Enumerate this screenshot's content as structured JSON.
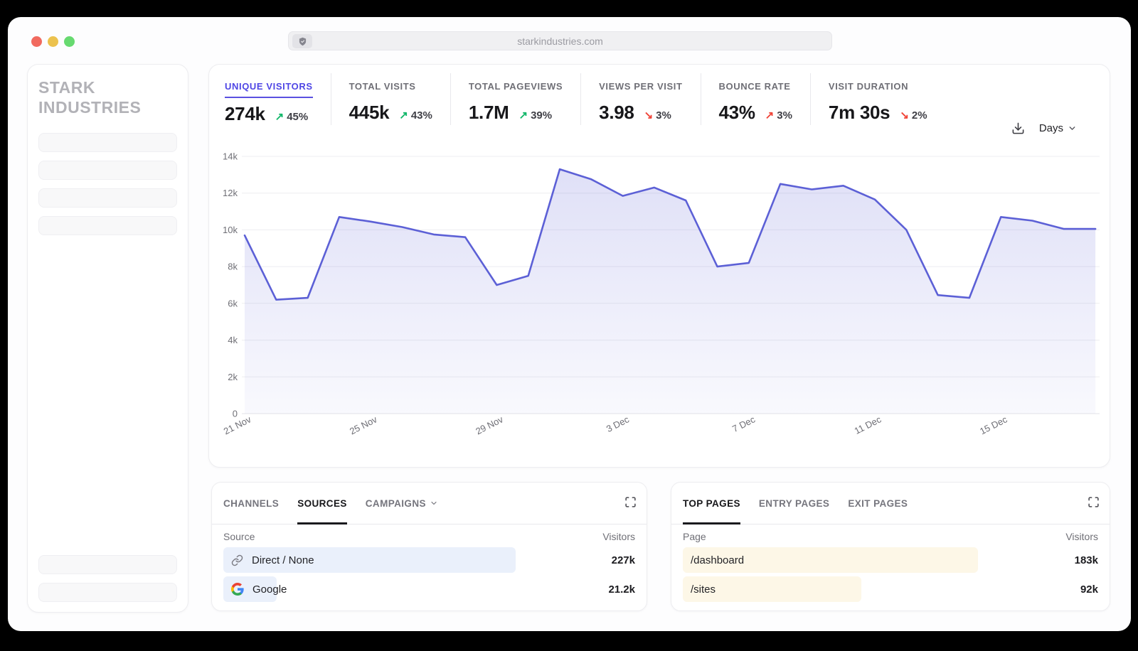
{
  "browser": {
    "url": "starkindustries.com"
  },
  "sidebar": {
    "brand_lines": [
      "STARK",
      "INDUSTRIES"
    ],
    "nav_placeholder_count": 4,
    "footer_placeholder_count": 2
  },
  "metrics": [
    {
      "label": "UNIQUE VISITORS",
      "value": "274k",
      "change": "45%",
      "direction": "up",
      "trend": "positive",
      "active": true
    },
    {
      "label": "TOTAL VISITS",
      "value": "445k",
      "change": "43%",
      "direction": "up",
      "trend": "positive",
      "active": false
    },
    {
      "label": "TOTAL PAGEVIEWS",
      "value": "1.7M",
      "change": "39%",
      "direction": "up",
      "trend": "positive",
      "active": false
    },
    {
      "label": "VIEWS PER VISIT",
      "value": "3.98",
      "change": "3%",
      "direction": "down",
      "trend": "negative",
      "active": false
    },
    {
      "label": "BOUNCE RATE",
      "value": "43%",
      "change": "3%",
      "direction": "up",
      "trend": "negative",
      "active": false
    },
    {
      "label": "VISIT DURATION",
      "value": "7m 30s",
      "change": "2%",
      "direction": "down",
      "trend": "negative",
      "active": false
    }
  ],
  "toolbar": {
    "interval_label": "Days"
  },
  "chart_data": {
    "type": "area",
    "title": "Unique visitors per day",
    "x": [
      "21 Nov",
      "22 Nov",
      "23 Nov",
      "24 Nov",
      "25 Nov",
      "26 Nov",
      "27 Nov",
      "28 Nov",
      "29 Nov",
      "30 Nov",
      "1 Dec",
      "2 Dec",
      "3 Dec",
      "4 Dec",
      "5 Dec",
      "6 Dec",
      "7 Dec",
      "8 Dec",
      "9 Dec",
      "10 Dec",
      "11 Dec",
      "12 Dec",
      "13 Dec",
      "14 Dec",
      "15 Dec",
      "16 Dec",
      "17 Dec",
      "18 Dec"
    ],
    "values_thousands": [
      9.7,
      6.2,
      6.3,
      10.7,
      10.45,
      10.15,
      9.75,
      9.6,
      7.0,
      7.5,
      13.3,
      12.75,
      11.85,
      12.3,
      11.6,
      8.0,
      8.2,
      12.5,
      12.2,
      12.4,
      11.65,
      10.0,
      6.45,
      6.3,
      10.7,
      10.5,
      10.05,
      10.05
    ],
    "xtick_indices": [
      0,
      4,
      8,
      12,
      16,
      20,
      24
    ],
    "xtick_labels": [
      "21 Nov",
      "25 Nov",
      "29 Nov",
      "3 Dec",
      "7 Dec",
      "11 Dec",
      "15 Dec"
    ],
    "ytick_labels": [
      "0",
      "2k",
      "4k",
      "6k",
      "8k",
      "10k",
      "12k",
      "14k"
    ],
    "ylim_thousands": [
      0,
      14
    ],
    "grid": true,
    "legend": "none",
    "line_color": "#5c60d6",
    "fill_top": "rgba(97,100,215,0.20)",
    "fill_bottom": "rgba(97,100,215,0.04)"
  },
  "sources_card": {
    "tabs": [
      {
        "label": "CHANNELS",
        "active": false,
        "has_chevron": false
      },
      {
        "label": "SOURCES",
        "active": true,
        "has_chevron": false
      },
      {
        "label": "CAMPAIGNS",
        "active": false,
        "has_chevron": true
      }
    ],
    "columns": {
      "left": "Source",
      "right": "Visitors"
    },
    "rows": [
      {
        "icon": "link-icon",
        "label": "Direct / None",
        "value": "227k",
        "bar_pct": 71
      },
      {
        "icon": "google-icon",
        "label": "Google",
        "value": "21.2k",
        "bar_pct": 13
      }
    ],
    "bar_color": "#eaf0fb"
  },
  "pages_card": {
    "tabs": [
      {
        "label": "TOP PAGES",
        "active": true,
        "has_chevron": false
      },
      {
        "label": "ENTRY PAGES",
        "active": false,
        "has_chevron": false
      },
      {
        "label": "EXIT PAGES",
        "active": false,
        "has_chevron": false
      }
    ],
    "columns": {
      "left": "Page",
      "right": "Visitors"
    },
    "rows": [
      {
        "icon": null,
        "label": "/dashboard",
        "value": "183k",
        "bar_pct": 71
      },
      {
        "icon": null,
        "label": "/sites",
        "value": "92k",
        "bar_pct": 43
      }
    ],
    "bar_color": "#fdf7e7"
  },
  "colors": {
    "accent": "#4f46e5",
    "positive": "#12b76a",
    "negative": "#f04438",
    "chart_line": "#5c60d6",
    "gridline": "#ededf0"
  }
}
